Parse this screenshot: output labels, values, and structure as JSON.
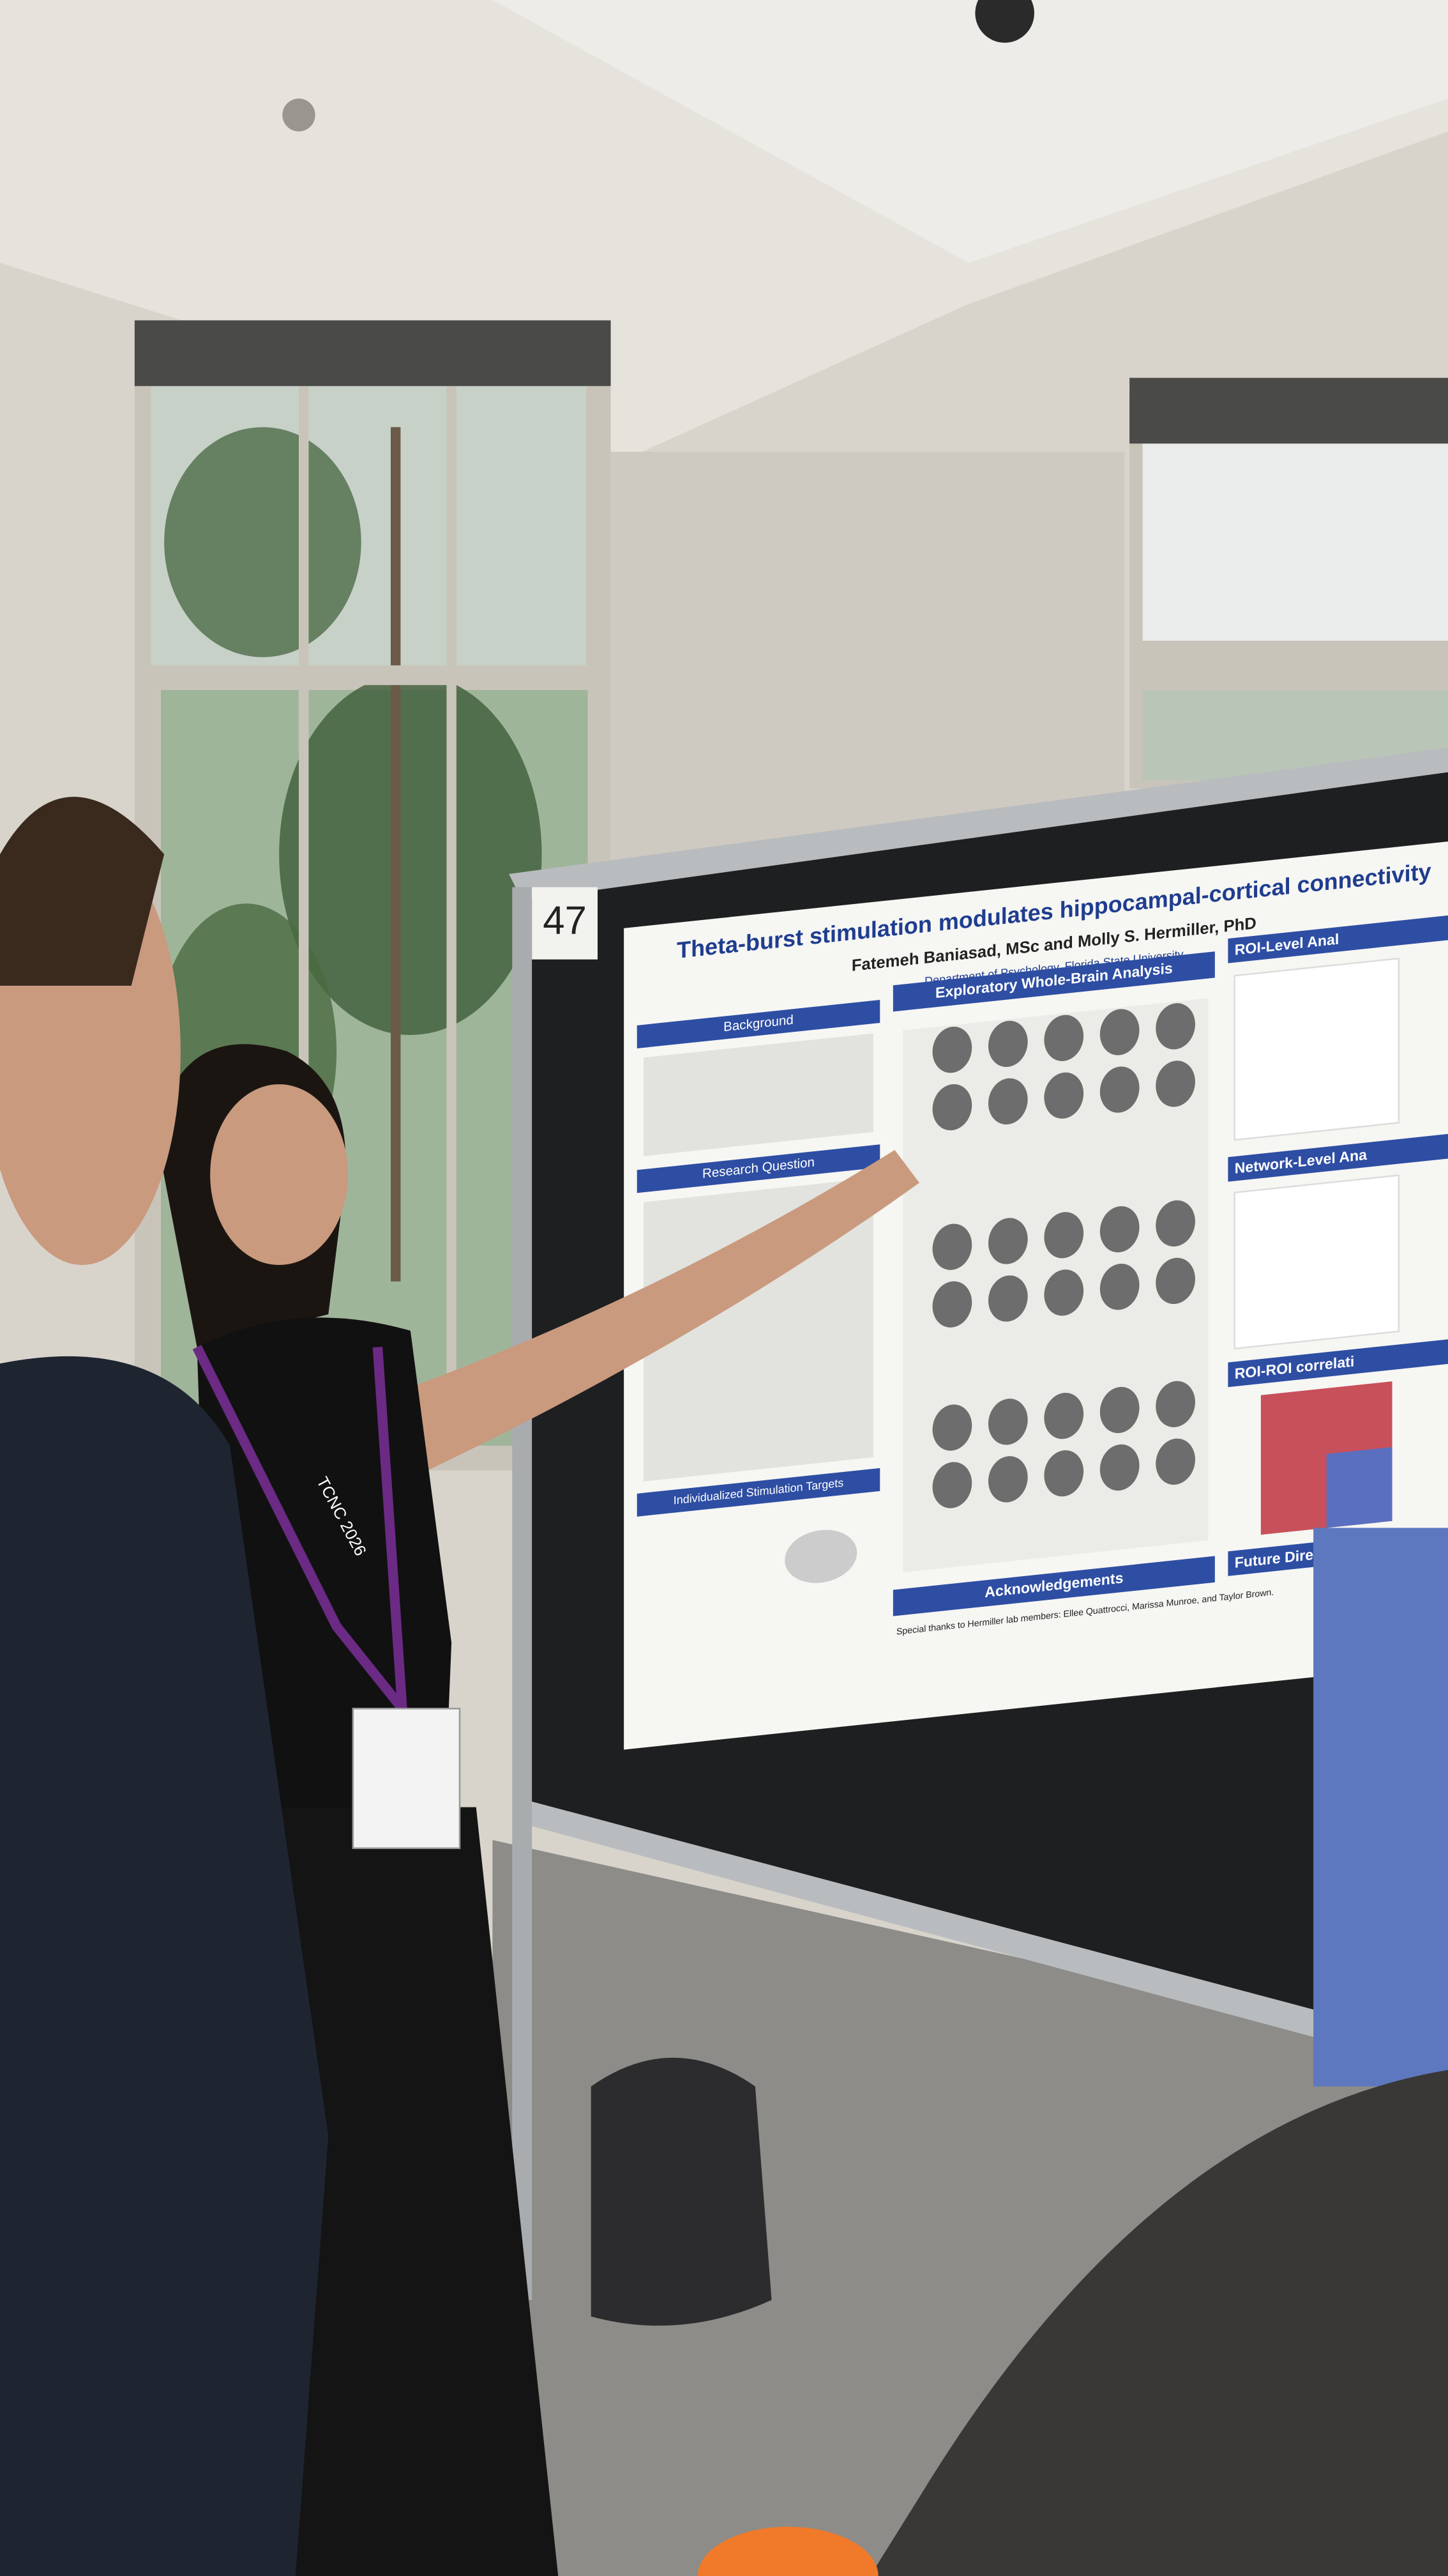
{
  "poster_number": "47",
  "lanyard": "TCNC 2026",
  "poster": {
    "title": "Theta-burst stimulation modulates hippocampal-cortical connectivity",
    "authors": "Fatemeh Baniasad, MSc and Molly S. Hermiller, PhD",
    "affiliation": "Department of Psychology, Florida State University",
    "sections": {
      "background": "Background",
      "research_question": "Research Question",
      "targets": "Individualized Stimulation Targets",
      "exploratory": "Exploratory Whole-Brain Analysis",
      "acknowledgements": "Acknowledgements",
      "roi_level": "ROI-Level Anal",
      "network_level": "Network-Level Ana",
      "roi_roi": "ROI-ROI correlati",
      "future": "Future Dire"
    },
    "acknowledgement_text": "Special thanks to Hermiller lab members: Ellee Quattrocci, Marissa Munroe, and Taylor Brown."
  }
}
